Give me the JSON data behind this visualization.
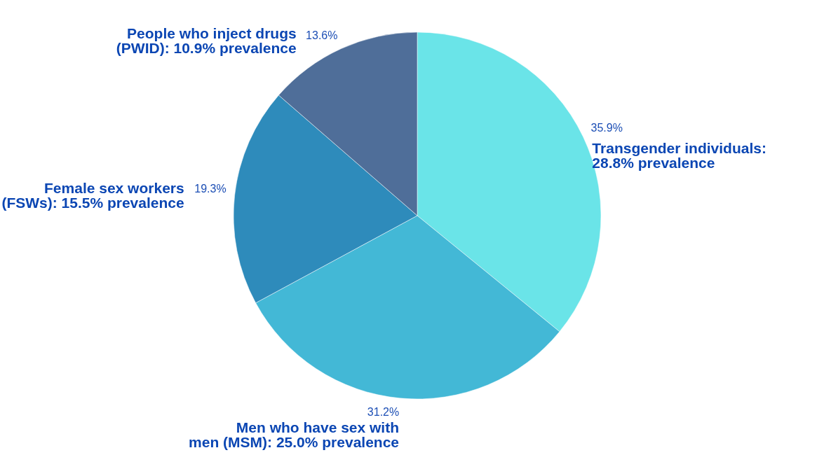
{
  "chart_data": {
    "type": "pie",
    "categories": [
      "Transgender individuals: 28.8% prevalence",
      "Men who have sex with men (MSM): 25.0% prevalence",
      "Female sex workers (FSWs): 15.5% prevalence",
      "People who inject drugs (PWID): 10.9% prevalence"
    ],
    "values": [
      35.9,
      31.2,
      19.3,
      13.6
    ],
    "colors": [
      "#6ae4e8",
      "#43b8d6",
      "#2e8bbb",
      "#4f6e99"
    ],
    "value_labels": [
      "35.9%",
      "31.2%",
      "19.3%",
      "13.6%"
    ]
  }
}
